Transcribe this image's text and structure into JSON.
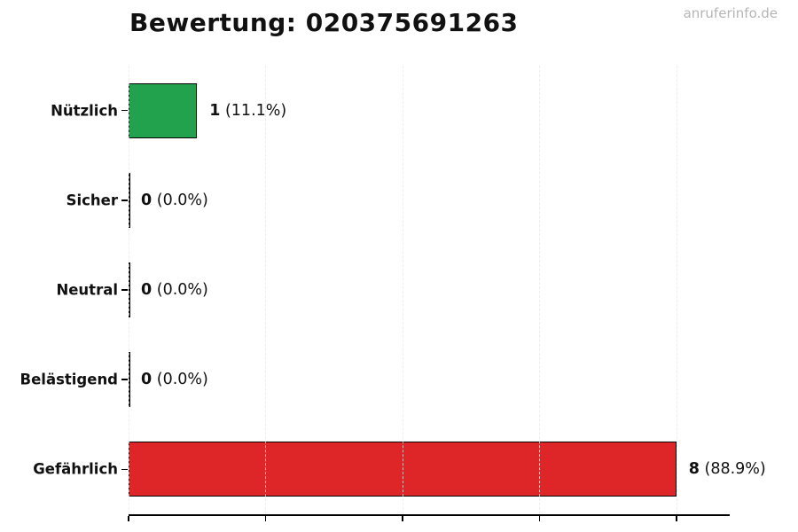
{
  "page": {
    "watermark": "anruferinfo.de"
  },
  "chart_data": {
    "type": "bar",
    "orientation": "horizontal",
    "title": "Bewertung: 020375691263",
    "categories": [
      "Nützlich",
      "Sicher",
      "Neutral",
      "Belästigend",
      "Gefährlich"
    ],
    "values": [
      1,
      0,
      0,
      0,
      8
    ],
    "pct_labels": [
      "(11.1%)",
      "(0.0%)",
      "(0.0%)",
      "(0.0%)",
      "(88.9%)"
    ],
    "value_labels": [
      "1 (11.1%)",
      "0 (0.0%)",
      "0 (0.0%)",
      "0 (0.0%)",
      "8 (88.9%)"
    ],
    "bar_colors": [
      "#22a24c",
      "#000000",
      "#000000",
      "#000000",
      "#de2629"
    ],
    "bar_edge_color": "#000000",
    "xlim": [
      0,
      8.78
    ],
    "x_gridlines": [
      0,
      2,
      4,
      6,
      8
    ],
    "grid": "vertical dashed, gridlines visible through bars",
    "legend": "none",
    "x_tick_labels_visible": false,
    "ylabel": "",
    "xlabel": ""
  }
}
